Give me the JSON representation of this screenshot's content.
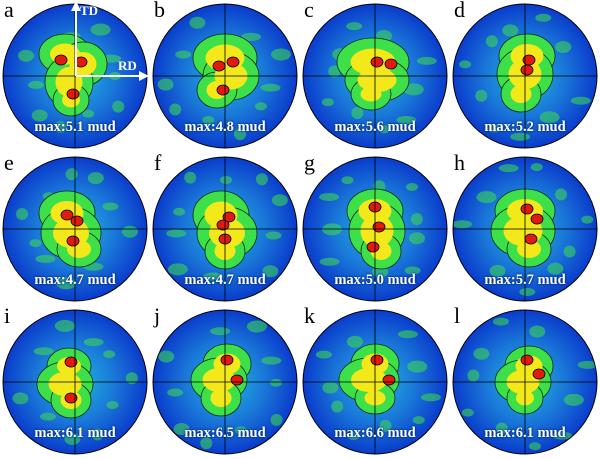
{
  "figure": {
    "axes": {
      "td": "TD",
      "rd": "RD"
    },
    "panels": [
      {
        "letter": "a",
        "max_label": "max:5.1 mud",
        "max": 5.1
      },
      {
        "letter": "b",
        "max_label": "max:4.8 mud",
        "max": 4.8
      },
      {
        "letter": "c",
        "max_label": "max:5.6 mud",
        "max": 5.6
      },
      {
        "letter": "d",
        "max_label": "max:5.2 mud",
        "max": 5.2
      },
      {
        "letter": "e",
        "max_label": "max:4.7 mud",
        "max": 4.7
      },
      {
        "letter": "f",
        "max_label": "max:4.7 mud",
        "max": 4.7
      },
      {
        "letter": "g",
        "max_label": "max:5.0 mud",
        "max": 5.0
      },
      {
        "letter": "h",
        "max_label": "max:5.7 mud",
        "max": 5.7
      },
      {
        "letter": "i",
        "max_label": "max:6.1 mud",
        "max": 6.1
      },
      {
        "letter": "j",
        "max_label": "max:6.5 mud",
        "max": 6.5
      },
      {
        "letter": "k",
        "max_label": "max:6.6 mud",
        "max": 6.6
      },
      {
        "letter": "l",
        "max_label": "max:6.1 mud",
        "max": 6.1
      }
    ],
    "colors": {
      "background": "#0a3ccc",
      "low": "#1fb8e0",
      "mid": "#3ee04a",
      "high": "#f2e81a",
      "peak": "#e21a10"
    }
  }
}
